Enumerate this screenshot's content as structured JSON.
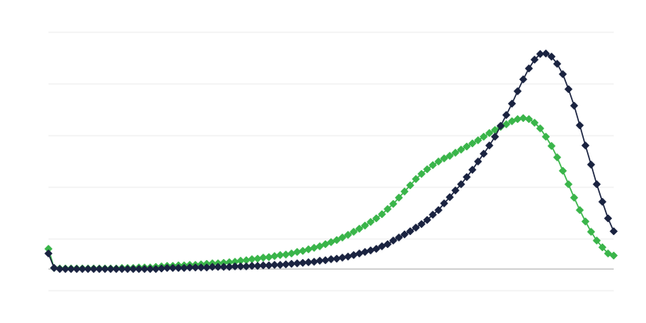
{
  "chart_data": {
    "type": "line",
    "title": "",
    "xlabel": "",
    "ylabel": "",
    "grid": true,
    "x_range": [
      0,
      100
    ],
    "ylim": [
      -0.42,
      4.58
    ],
    "gridlines": [
      -0.42,
      0.58,
      1.58,
      2.58,
      3.58,
      4.58
    ],
    "baseline": 0,
    "colors": {
      "grid": "#ebebeb",
      "baseline": "#aaaaaa"
    },
    "series": [
      {
        "color": "#3ab54a",
        "marker": "diamond",
        "values": [
          0.39,
          0.02,
          0.01,
          0.01,
          0.01,
          0.01,
          0.01,
          0.01,
          0.01,
          0.01,
          0.01,
          0.01,
          0.01,
          0.02,
          0.02,
          0.02,
          0.03,
          0.03,
          0.03,
          0.04,
          0.05,
          0.06,
          0.06,
          0.07,
          0.07,
          0.08,
          0.08,
          0.09,
          0.1,
          0.11,
          0.11,
          0.12,
          0.13,
          0.14,
          0.16,
          0.17,
          0.19,
          0.2,
          0.22,
          0.23,
          0.25,
          0.27,
          0.28,
          0.3,
          0.33,
          0.35,
          0.38,
          0.41,
          0.44,
          0.48,
          0.52,
          0.56,
          0.61,
          0.66,
          0.72,
          0.78,
          0.84,
          0.91,
          0.98,
          1.06,
          1.16,
          1.26,
          1.38,
          1.5,
          1.62,
          1.74,
          1.84,
          1.93,
          2.01,
          2.08,
          2.14,
          2.19,
          2.25,
          2.31,
          2.37,
          2.43,
          2.49,
          2.56,
          2.63,
          2.69,
          2.75,
          2.8,
          2.86,
          2.9,
          2.92,
          2.9,
          2.83,
          2.72,
          2.56,
          2.38,
          2.16,
          1.9,
          1.64,
          1.38,
          1.14,
          0.92,
          0.72,
          0.55,
          0.42,
          0.3,
          0.26
        ]
      },
      {
        "color": "#1a2340",
        "marker": "diamond",
        "values": [
          0.3,
          0.02,
          0,
          0,
          0,
          0,
          0,
          0,
          0,
          0,
          0,
          0,
          0,
          0,
          0,
          0,
          0,
          0,
          0,
          0,
          0.01,
          0.02,
          0.02,
          0.02,
          0.02,
          0.03,
          0.03,
          0.03,
          0.03,
          0.04,
          0.04,
          0.04,
          0.04,
          0.05,
          0.05,
          0.05,
          0.06,
          0.06,
          0.07,
          0.07,
          0.08,
          0.08,
          0.09,
          0.1,
          0.11,
          0.12,
          0.13,
          0.14,
          0.16,
          0.17,
          0.19,
          0.2,
          0.22,
          0.24,
          0.27,
          0.3,
          0.33,
          0.36,
          0.39,
          0.44,
          0.48,
          0.55,
          0.61,
          0.67,
          0.73,
          0.8,
          0.87,
          0.95,
          1.05,
          1.14,
          1.27,
          1.39,
          1.52,
          1.64,
          1.78,
          1.92,
          2.08,
          2.23,
          2.39,
          2.56,
          2.77,
          2.98,
          3.2,
          3.44,
          3.67,
          3.88,
          4.05,
          4.16,
          4.17,
          4.11,
          3.97,
          3.77,
          3.48,
          3.16,
          2.78,
          2.39,
          2.02,
          1.64,
          1.3,
          0.98,
          0.73
        ]
      }
    ]
  }
}
